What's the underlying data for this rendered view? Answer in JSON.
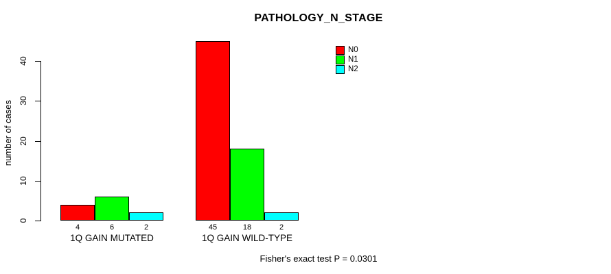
{
  "figure": {
    "title": "PATHOLOGY_N_STAGE",
    "footer_note": "Fisher's exact test P = 0.0301"
  },
  "chart_data": {
    "type": "bar",
    "title": "PATHOLOGY_N_STAGE",
    "xlabel": "",
    "ylabel": "number of cases",
    "ylim": [
      0,
      40
    ],
    "yticks": [
      0,
      10,
      20,
      30,
      40
    ],
    "grid": false,
    "legend_position": "top-right-inside",
    "categories": [
      "1Q GAIN MUTATED",
      "1Q GAIN WILD-TYPE"
    ],
    "series": [
      {
        "name": "N0",
        "color": "#ff0000",
        "values": [
          4,
          45
        ]
      },
      {
        "name": "N1",
        "color": "#00ff00",
        "values": [
          6,
          18
        ]
      },
      {
        "name": "N2",
        "color": "#00ffff",
        "values": [
          2,
          2
        ]
      }
    ],
    "bar_value_labels": [
      [
        4,
        6,
        2
      ],
      [
        45,
        18,
        2
      ]
    ],
    "bar_border_color": "#000000",
    "axis_color": "#000000",
    "annotation": "Fisher's exact test P = 0.0301"
  }
}
